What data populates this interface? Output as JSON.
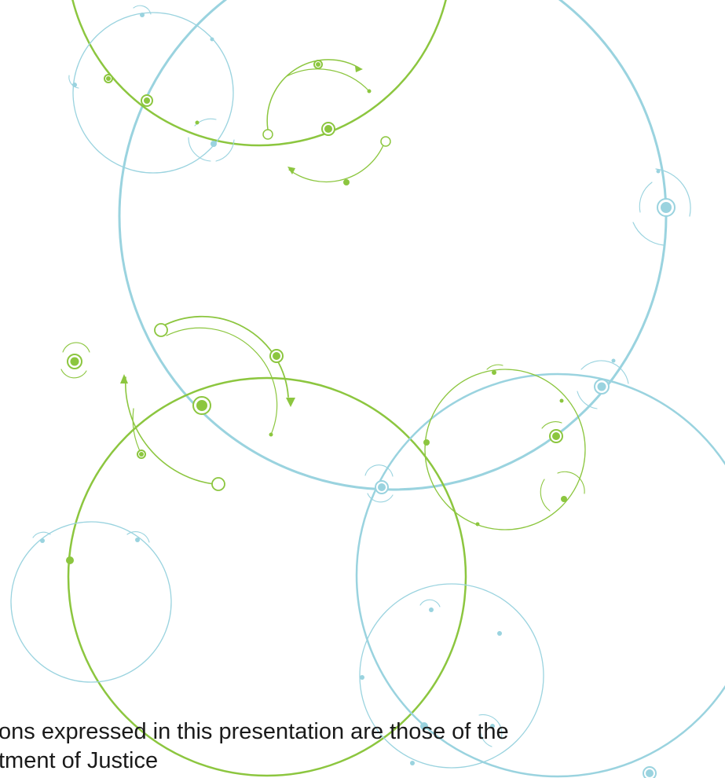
{
  "slide": {
    "disclaimer_line_1": "ons expressed in this presentation are those of the",
    "disclaimer_line_2": "tment of Justice"
  },
  "colors": {
    "background": "#ffffff",
    "green": "#8cc63f",
    "blue": "#9ad3df",
    "text": "#1a1a1a"
  },
  "decoration": {
    "icon": "orbit-circles-icon"
  }
}
